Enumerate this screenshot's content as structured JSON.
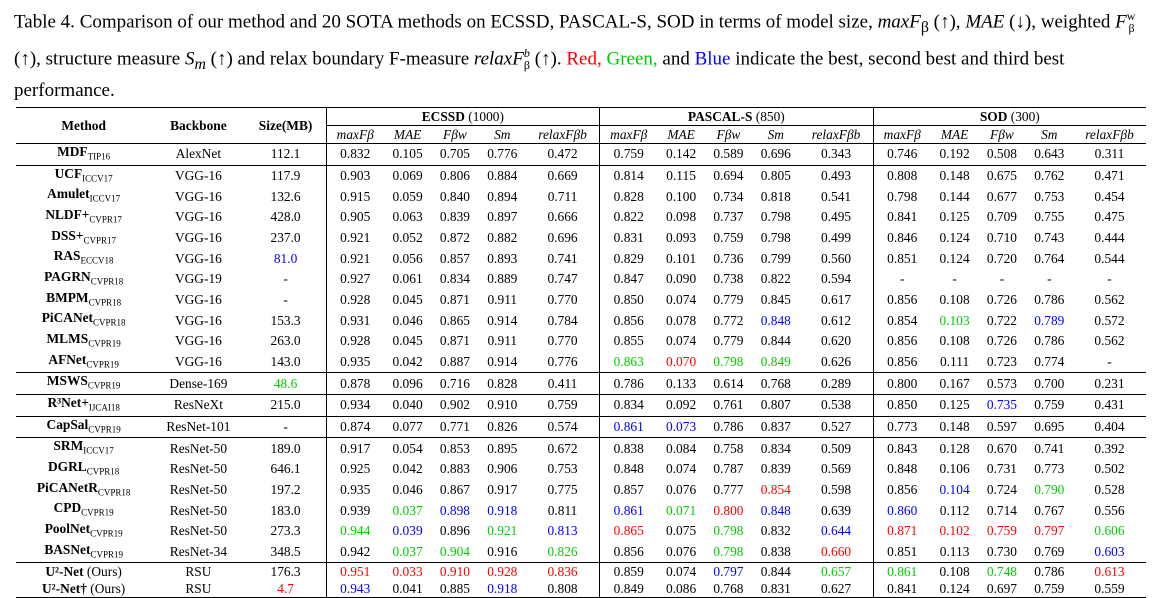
{
  "caption": {
    "label": "Table 4.",
    "text_1": "Comparison of our method and 20 SOTA methods on ECSSD, PASCAL-S, SOD in terms of model size,",
    "m_maxf": "maxF",
    "m_maxf_sub": "β",
    "up": "(↑),",
    "m_mae": "MAE",
    "down": "(↓),",
    "text_weighted": "weighted",
    "m_fw": "F",
    "m_fw_sup": "w",
    "m_fw_sub": "β",
    "text_structure": "(↑), structure measure",
    "m_sm": "S",
    "m_sm_sub": "m",
    "text_relax": "(↑) and relax boundary F-measure",
    "m_relax": "relaxF",
    "m_relax_sup": "b",
    "m_relax_sub": "β",
    "text_up2": "(↑).",
    "red": "Red,",
    "green": "Green,",
    "and": "and",
    "blue": "Blue",
    "text_end": "indicate the best, second best and third best performance."
  },
  "table": {
    "col_method": "Method",
    "col_backbone": "Backbone",
    "col_size": "Size(MB)",
    "groups": [
      {
        "name": "ECSSD",
        "count": "(1000)"
      },
      {
        "name": "PASCAL-S",
        "count": "(850)"
      },
      {
        "name": "SOD",
        "count": "(300)"
      }
    ],
    "metrics": [
      "maxFβ",
      "MAE",
      "Fβw",
      "Sm",
      "relaxFβb"
    ],
    "rows": [
      {
        "name": "MDF",
        "venue": "TIP16",
        "backbone": "AlexNet",
        "size": "112.1",
        "vals": [
          "0.832",
          "0.105",
          "0.705",
          "0.776",
          "0.472",
          "0.759",
          "0.142",
          "0.589",
          "0.696",
          "0.343",
          "0.746",
          "0.192",
          "0.508",
          "0.643",
          "0.311"
        ],
        "sep": true
      },
      {
        "name": "UCF",
        "venue": "ICCV17",
        "backbone": "VGG-16",
        "size": "117.9",
        "vals": [
          "0.903",
          "0.069",
          "0.806",
          "0.884",
          "0.669",
          "0.814",
          "0.115",
          "0.694",
          "0.805",
          "0.493",
          "0.808",
          "0.148",
          "0.675",
          "0.762",
          "0.471"
        ],
        "sep": true
      },
      {
        "name": "Amulet",
        "venue": "ICCV17",
        "backbone": "VGG-16",
        "size": "132.6",
        "vals": [
          "0.915",
          "0.059",
          "0.840",
          "0.894",
          "0.711",
          "0.828",
          "0.100",
          "0.734",
          "0.818",
          "0.541",
          "0.798",
          "0.144",
          "0.677",
          "0.753",
          "0.454"
        ]
      },
      {
        "name": "NLDF+",
        "venue": "CVPR17",
        "backbone": "VGG-16",
        "size": "428.0",
        "vals": [
          "0.905",
          "0.063",
          "0.839",
          "0.897",
          "0.666",
          "0.822",
          "0.098",
          "0.737",
          "0.798",
          "0.495",
          "0.841",
          "0.125",
          "0.709",
          "0.755",
          "0.475"
        ]
      },
      {
        "name": "DSS+",
        "venue": "CVPR17",
        "backbone": "VGG-16",
        "size": "237.0",
        "vals": [
          "0.921",
          "0.052",
          "0.872",
          "0.882",
          "0.696",
          "0.831",
          "0.093",
          "0.759",
          "0.798",
          "0.499",
          "0.846",
          "0.124",
          "0.710",
          "0.743",
          "0.444"
        ]
      },
      {
        "name": "RAS",
        "venue": "ECCV18",
        "backbone": "VGG-16",
        "size": "81.0",
        "size_color": "blue",
        "vals": [
          "0.921",
          "0.056",
          "0.857",
          "0.893",
          "0.741",
          "0.829",
          "0.101",
          "0.736",
          "0.799",
          "0.560",
          "0.851",
          "0.124",
          "0.720",
          "0.764",
          "0.544"
        ]
      },
      {
        "name": "PAGRN",
        "venue": "CVPR18",
        "backbone": "VGG-19",
        "size": "-",
        "vals": [
          "0.927",
          "0.061",
          "0.834",
          "0.889",
          "0.747",
          "0.847",
          "0.090",
          "0.738",
          "0.822",
          "0.594",
          "-",
          "-",
          "-",
          "-",
          "-"
        ]
      },
      {
        "name": "BMPM",
        "venue": "CVPR18",
        "backbone": "VGG-16",
        "size": "-",
        "vals": [
          "0.928",
          "0.045",
          "0.871",
          "0.911",
          "0.770",
          "0.850",
          "0.074",
          "0.779",
          "0.845",
          "0.617",
          "0.856",
          "0.108",
          "0.726",
          "0.786",
          "0.562"
        ]
      },
      {
        "name": "PiCANet",
        "venue": "CVPR18",
        "backbone": "VGG-16",
        "size": "153.3",
        "vals": [
          "0.931",
          "0.046",
          "0.865",
          "0.914",
          "0.784",
          "0.856",
          "0.078",
          "0.772",
          "0.848",
          "0.612",
          "0.854",
          "0.103",
          "0.722",
          "0.789",
          "0.572"
        ],
        "colors": {
          "8": "blue",
          "11": "green",
          "13": "blue"
        }
      },
      {
        "name": "MLMS",
        "venue": "CVPR19",
        "backbone": "VGG-16",
        "size": "263.0",
        "vals": [
          "0.928",
          "0.045",
          "0.871",
          "0.911",
          "0.770",
          "0.855",
          "0.074",
          "0.779",
          "0.844",
          "0.620",
          "0.856",
          "0.108",
          "0.726",
          "0.786",
          "0.562"
        ]
      },
      {
        "name": "AFNet",
        "venue": "CVPR19",
        "backbone": "VGG-16",
        "size": "143.0",
        "vals": [
          "0.935",
          "0.042",
          "0.887",
          "0.914",
          "0.776",
          "0.863",
          "0.070",
          "0.798",
          "0.849",
          "0.626",
          "0.856",
          "0.111",
          "0.723",
          "0.774",
          "-"
        ],
        "colors": {
          "5": "green",
          "6": "red",
          "7": "green",
          "8": "green"
        }
      },
      {
        "name": "MSWS",
        "venue": "CVPR19",
        "backbone": "Dense-169",
        "size": "48.6",
        "size_color": "green",
        "vals": [
          "0.878",
          "0.096",
          "0.716",
          "0.828",
          "0.411",
          "0.786",
          "0.133",
          "0.614",
          "0.768",
          "0.289",
          "0.800",
          "0.167",
          "0.573",
          "0.700",
          "0.231"
        ],
        "sep": true
      },
      {
        "name": "R³Net+",
        "venue": "IJCAI18",
        "backbone": "ResNeXt",
        "size": "215.0",
        "vals": [
          "0.934",
          "0.040",
          "0.902",
          "0.910",
          "0.759",
          "0.834",
          "0.092",
          "0.761",
          "0.807",
          "0.538",
          "0.850",
          "0.125",
          "0.735",
          "0.759",
          "0.431"
        ],
        "colors": {
          "12": "blue"
        },
        "sep": true
      },
      {
        "name": "CapSal",
        "venue": "CVPR19",
        "backbone": "ResNet-101",
        "size": "-",
        "vals": [
          "0.874",
          "0.077",
          "0.771",
          "0.826",
          "0.574",
          "0.861",
          "0.073",
          "0.786",
          "0.837",
          "0.527",
          "0.773",
          "0.148",
          "0.597",
          "0.695",
          "0.404"
        ],
        "colors": {
          "5": "blue",
          "6": "blue"
        },
        "sep": true
      },
      {
        "name": "SRM",
        "venue": "ICCV17",
        "backbone": "ResNet-50",
        "size": "189.0",
        "vals": [
          "0.917",
          "0.054",
          "0.853",
          "0.895",
          "0.672",
          "0.838",
          "0.084",
          "0.758",
          "0.834",
          "0.509",
          "0.843",
          "0.128",
          "0.670",
          "0.741",
          "0.392"
        ],
        "sep": true
      },
      {
        "name": "DGRL",
        "venue": "CVPR18",
        "backbone": "ResNet-50",
        "size": "646.1",
        "vals": [
          "0.925",
          "0.042",
          "0.883",
          "0.906",
          "0.753",
          "0.848",
          "0.074",
          "0.787",
          "0.839",
          "0.569",
          "0.848",
          "0.106",
          "0.731",
          "0.773",
          "0.502"
        ]
      },
      {
        "name": "PiCANetR",
        "venue": "CVPR18",
        "backbone": "ResNet-50",
        "size": "197.2",
        "vals": [
          "0.935",
          "0.046",
          "0.867",
          "0.917",
          "0.775",
          "0.857",
          "0.076",
          "0.777",
          "0.854",
          "0.598",
          "0.856",
          "0.104",
          "0.724",
          "0.790",
          "0.528"
        ],
        "colors": {
          "8": "red",
          "11": "blue",
          "13": "green"
        }
      },
      {
        "name": "CPD",
        "venue": "CVPR19",
        "backbone": "ResNet-50",
        "size": "183.0",
        "vals": [
          "0.939",
          "0.037",
          "0.898",
          "0.918",
          "0.811",
          "0.861",
          "0.071",
          "0.800",
          "0.848",
          "0.639",
          "0.860",
          "0.112",
          "0.714",
          "0.767",
          "0.556"
        ],
        "colors": {
          "1": "green",
          "2": "blue",
          "3": "blue",
          "5": "blue",
          "6": "green",
          "7": "red",
          "8": "blue",
          "10": "blue"
        }
      },
      {
        "name": "PoolNet",
        "venue": "CVPR19",
        "backbone": "ResNet-50",
        "size": "273.3",
        "vals": [
          "0.944",
          "0.039",
          "0.896",
          "0.921",
          "0.813",
          "0.865",
          "0.075",
          "0.798",
          "0.832",
          "0.644",
          "0.871",
          "0.102",
          "0.759",
          "0.797",
          "0.606"
        ],
        "colors": {
          "0": "green",
          "1": "blue",
          "3": "green",
          "4": "blue",
          "5": "red",
          "7": "green",
          "9": "blue",
          "10": "red",
          "11": "red",
          "12": "red",
          "13": "red",
          "14": "green"
        }
      },
      {
        "name": "BASNet",
        "venue": "CVPR19",
        "backbone": "ResNet-34",
        "size": "348.5",
        "vals": [
          "0.942",
          "0.037",
          "0.904",
          "0.916",
          "0.826",
          "0.856",
          "0.076",
          "0.798",
          "0.838",
          "0.660",
          "0.851",
          "0.113",
          "0.730",
          "0.769",
          "0.603"
        ],
        "colors": {
          "1": "green",
          "2": "green",
          "4": "green",
          "7": "green",
          "9": "red",
          "14": "blue"
        }
      },
      {
        "name": "U²-Net",
        "venue": "",
        "suffix": " (Ours)",
        "backbone": "RSU",
        "size": "176.3",
        "vals": [
          "0.951",
          "0.033",
          "0.910",
          "0.928",
          "0.836",
          "0.859",
          "0.074",
          "0.797",
          "0.844",
          "0.657",
          "0.861",
          "0.108",
          "0.748",
          "0.786",
          "0.613"
        ],
        "colors": {
          "0": "red",
          "1": "red",
          "2": "red",
          "3": "red",
          "4": "red",
          "7": "blue",
          "9": "green",
          "10": "green",
          "12": "green",
          "14": "red"
        },
        "sep": true
      },
      {
        "name": "U²-Net†",
        "venue": "",
        "suffix": " (Ours)",
        "backbone": "RSU",
        "size": "4.7",
        "size_color": "red",
        "vals": [
          "0.943",
          "0.041",
          "0.885",
          "0.918",
          "0.808",
          "0.849",
          "0.086",
          "0.768",
          "0.831",
          "0.627",
          "0.841",
          "0.124",
          "0.697",
          "0.759",
          "0.559"
        ],
        "colors": {
          "0": "blue",
          "3": "blue"
        }
      }
    ]
  }
}
